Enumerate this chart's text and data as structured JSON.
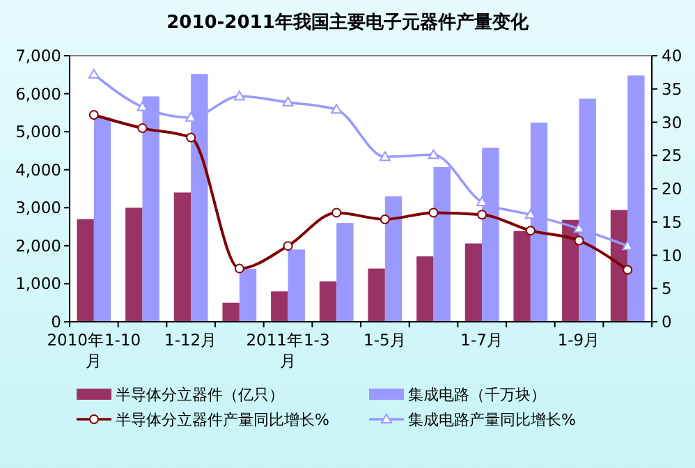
{
  "chart_data": {
    "type": "bar",
    "title": "2010-2011年我国主要电子元器件产量变化",
    "categories": [
      "2010年1-10月",
      null,
      "1-12月",
      null,
      "2011年1-3月",
      null,
      "1-5月",
      null,
      "1-7月",
      null,
      "1-9月",
      null
    ],
    "series": [
      {
        "name": "半导体分立器件（亿只）",
        "color": "#993366",
        "values": [
          2700,
          3000,
          3400,
          500,
          800,
          1060,
          1400,
          1720,
          2060,
          2390,
          2680,
          2940
        ]
      },
      {
        "name": "集成电路（千万块）",
        "color": "#9999ff",
        "values": [
          5380,
          5930,
          6520,
          1390,
          1900,
          2600,
          3300,
          4070,
          4580,
          5240,
          5870,
          6480
        ]
      },
      {
        "name": "半导体分立器件产量同比增长%",
        "type": "line",
        "axis": "y2",
        "marker": "circle",
        "color": "#800000",
        "values": [
          31.1,
          29.1,
          27.7,
          8.0,
          11.4,
          16.4,
          15.4,
          16.4,
          16.1,
          13.7,
          12.2,
          7.8
        ]
      },
      {
        "name": "集成电路产量同比增长%",
        "type": "line",
        "axis": "y2",
        "marker": "triangle",
        "color": "#9999ff",
        "values": [
          37.2,
          32.3,
          30.7,
          33.9,
          33.0,
          31.9,
          24.8,
          25.1,
          18.0,
          16.1,
          14.0,
          11.4
        ]
      }
    ],
    "ylim": [
      0,
      7000
    ],
    "yticks": [
      {
        "value": 0,
        "label": "0"
      },
      {
        "value": 1000,
        "label": "1,000"
      },
      {
        "value": 2000,
        "label": "2,000"
      },
      {
        "value": 3000,
        "label": "3,000"
      },
      {
        "value": 4000,
        "label": "4,000"
      },
      {
        "value": 5000,
        "label": "5,000"
      },
      {
        "value": 6000,
        "label": "6,000"
      },
      {
        "value": 7000,
        "label": "7,000"
      }
    ],
    "y2lim": [
      0,
      40
    ],
    "y2ticks": [
      0,
      5,
      10,
      15,
      20,
      25,
      30,
      35,
      40
    ],
    "legend": "bottom"
  }
}
